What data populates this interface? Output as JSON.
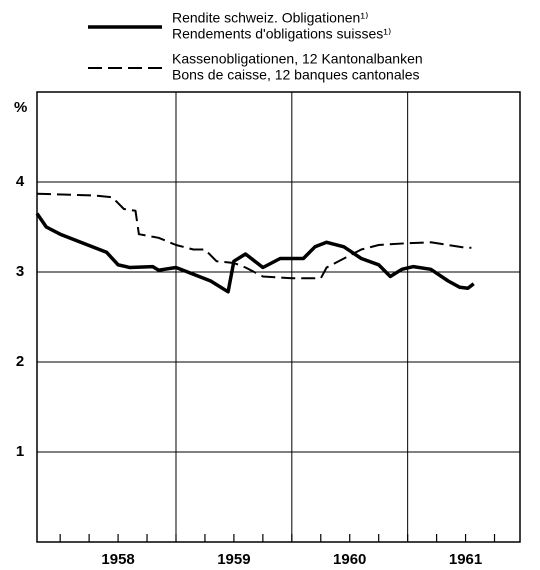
{
  "chart_data": {
    "type": "line",
    "y_unit_label": "%",
    "series": [
      {
        "name": "Rendite schweiz. Obligationen¹⁾",
        "subname": "Rendements d'obligations suisses¹⁾",
        "color": "#000000",
        "style": "solid",
        "x": [
          1957.8,
          1957.88,
          1958.0,
          1958.2,
          1958.4,
          1958.5,
          1958.6,
          1958.8,
          1958.85,
          1959.0,
          1959.1,
          1959.3,
          1959.45,
          1959.5,
          1959.6,
          1959.75,
          1959.9,
          1960.1,
          1960.2,
          1960.3,
          1960.45,
          1960.6,
          1960.75,
          1960.85,
          1960.95,
          1961.05,
          1961.2,
          1961.35,
          1961.45,
          1961.52,
          1961.57
        ],
        "values": [
          3.65,
          3.5,
          3.42,
          3.32,
          3.22,
          3.08,
          3.05,
          3.06,
          3.02,
          3.05,
          3.0,
          2.9,
          2.78,
          3.12,
          3.2,
          3.05,
          3.15,
          3.15,
          3.28,
          3.33,
          3.28,
          3.15,
          3.08,
          2.95,
          3.03,
          3.06,
          3.03,
          2.9,
          2.83,
          2.82,
          2.87
        ]
      },
      {
        "name": "Kassenobligationen, 12 Kantonalbanken",
        "subname": "Bons de caisse, 12 banques cantonales",
        "color": "#000000",
        "style": "dashed",
        "x": [
          1957.8,
          1958.3,
          1958.45,
          1958.55,
          1958.65,
          1958.68,
          1958.85,
          1959.0,
          1959.15,
          1959.25,
          1959.35,
          1959.5,
          1959.6,
          1959.75,
          1960.0,
          1960.25,
          1960.3,
          1960.45,
          1960.6,
          1960.75,
          1961.0,
          1961.2,
          1961.35,
          1961.5,
          1961.55
        ],
        "values": [
          3.87,
          3.85,
          3.83,
          3.7,
          3.68,
          3.42,
          3.38,
          3.3,
          3.25,
          3.25,
          3.12,
          3.1,
          3.05,
          2.95,
          2.93,
          2.93,
          3.05,
          3.15,
          3.25,
          3.3,
          3.32,
          3.33,
          3.3,
          3.27,
          3.27
        ]
      }
    ],
    "xlim": [
      1957.8,
      1961.97
    ],
    "xticks": [
      {
        "value": 1958.5,
        "label": "1958"
      },
      {
        "value": 1959.5,
        "label": "1959"
      },
      {
        "value": 1960.5,
        "label": "1960"
      },
      {
        "value": 1961.5,
        "label": "1961"
      }
    ],
    "xgrid": [
      1959,
      1960,
      1961
    ],
    "xminor_ticks": [
      1958.0,
      1958.25,
      1958.5,
      1958.75,
      1959.0,
      1959.25,
      1959.5,
      1959.75,
      1960.0,
      1960.25,
      1960.5,
      1960.75,
      1961.0,
      1961.25,
      1961.5,
      1961.75
    ],
    "ylim": [
      0,
      5
    ],
    "yticks": [
      1,
      2,
      3,
      4
    ],
    "grid": true
  }
}
